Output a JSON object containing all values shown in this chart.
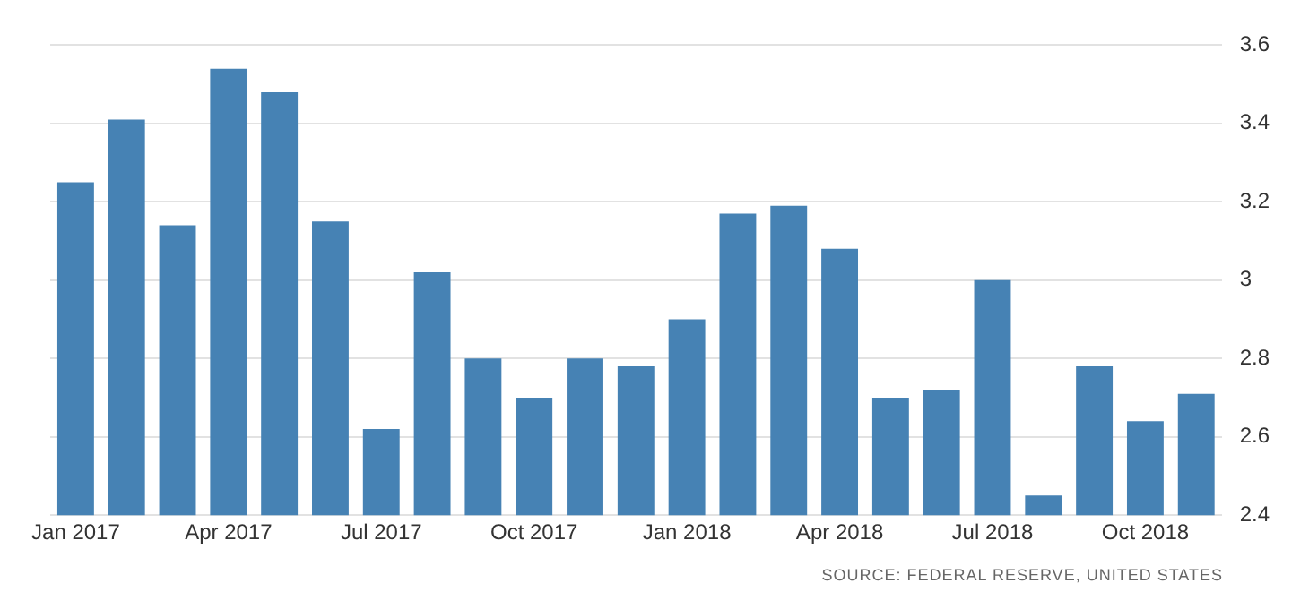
{
  "chart_data": {
    "type": "bar",
    "categories": [
      "Jan 2017",
      null,
      null,
      "Apr 2017",
      null,
      null,
      "Jul 2017",
      null,
      null,
      "Oct 2017",
      null,
      null,
      "Jan 2018",
      null,
      null,
      "Apr 2018",
      null,
      null,
      "Jul 2018",
      null,
      null,
      "Oct 2018",
      null
    ],
    "values": [
      3.25,
      3.41,
      3.14,
      3.54,
      3.48,
      3.15,
      2.62,
      3.02,
      2.8,
      2.7,
      2.8,
      2.78,
      2.9,
      3.17,
      3.19,
      3.08,
      2.7,
      2.72,
      3.0,
      2.45,
      2.78,
      2.64,
      2.71
    ],
    "color": "#4682b4",
    "ylim": [
      2.4,
      3.6
    ],
    "yticks": [
      2.4,
      2.6,
      2.8,
      3,
      3.2,
      3.4,
      3.6
    ],
    "grid": "y",
    "annotations": [
      "SOURCE: FEDERAL RESERVE, UNITED STATES"
    ]
  }
}
